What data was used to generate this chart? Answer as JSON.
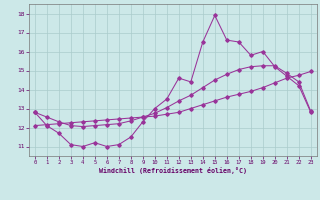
{
  "xlabel": "Windchill (Refroidissement éolien,°C)",
  "background_color": "#cce8e8",
  "grid_color": "#aacccc",
  "line_color": "#993399",
  "xlim": [
    -0.5,
    23.5
  ],
  "ylim": [
    10.5,
    18.5
  ],
  "xticks": [
    0,
    1,
    2,
    3,
    4,
    5,
    6,
    7,
    8,
    9,
    10,
    11,
    12,
    13,
    14,
    15,
    16,
    17,
    18,
    19,
    20,
    21,
    22,
    23
  ],
  "yticks": [
    11,
    12,
    13,
    14,
    15,
    16,
    17,
    18
  ],
  "line1_x": [
    0,
    1,
    2,
    3,
    4,
    5,
    6,
    7,
    8,
    9,
    10,
    11,
    12,
    13,
    14,
    15,
    16,
    17,
    18,
    19,
    20,
    21,
    22,
    23
  ],
  "line1_y": [
    12.8,
    12.1,
    11.7,
    11.1,
    11.0,
    11.2,
    11.0,
    11.1,
    11.5,
    12.3,
    13.0,
    13.5,
    14.6,
    14.4,
    16.5,
    17.9,
    16.6,
    16.5,
    15.8,
    16.0,
    15.2,
    14.7,
    14.2,
    12.8
  ],
  "line2_x": [
    0,
    1,
    2,
    3,
    4,
    5,
    6,
    7,
    8,
    9,
    10,
    11,
    12,
    13,
    14,
    15,
    16,
    17,
    18,
    19,
    20,
    21,
    22,
    23
  ],
  "line2_y": [
    12.1,
    12.15,
    12.2,
    12.25,
    12.3,
    12.35,
    12.4,
    12.45,
    12.5,
    12.55,
    12.6,
    12.7,
    12.8,
    13.0,
    13.2,
    13.4,
    13.6,
    13.75,
    13.9,
    14.1,
    14.35,
    14.6,
    14.75,
    14.95
  ],
  "line3_x": [
    0,
    1,
    2,
    3,
    4,
    5,
    6,
    7,
    8,
    9,
    10,
    11,
    12,
    13,
    14,
    15,
    16,
    17,
    18,
    19,
    20,
    21,
    22,
    23
  ],
  "line3_y": [
    12.8,
    12.55,
    12.3,
    12.1,
    12.05,
    12.1,
    12.15,
    12.2,
    12.35,
    12.55,
    12.75,
    13.05,
    13.4,
    13.7,
    14.1,
    14.5,
    14.8,
    15.05,
    15.2,
    15.25,
    15.25,
    14.85,
    14.4,
    12.85
  ]
}
